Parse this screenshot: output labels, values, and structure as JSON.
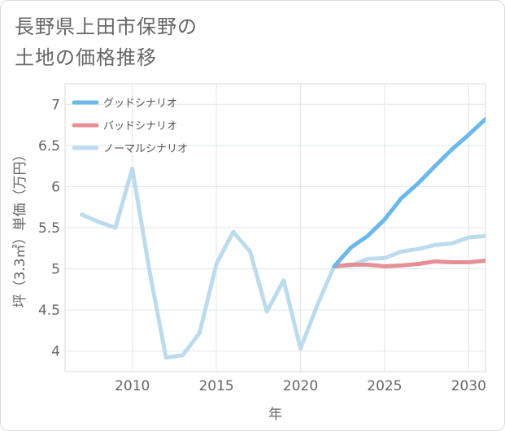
{
  "chart_data": {
    "type": "line",
    "title_lines": [
      "長野県上田市保野の",
      "土地の価格推移"
    ],
    "xlabel": "年",
    "ylabel": "坪（3.3㎡）単価（万円）",
    "xlim": [
      2006,
      2031
    ],
    "ylim": [
      3.75,
      7.25
    ],
    "x_ticks": [
      2010,
      2015,
      2020,
      2025,
      2030
    ],
    "y_ticks": [
      4,
      4.5,
      5,
      5.5,
      6,
      6.5,
      7
    ],
    "grid": true,
    "legend_position": "top-left",
    "series": [
      {
        "name": "グッドシナリオ",
        "color": "#6cb8eb",
        "points": [
          [
            2022,
            5.03
          ],
          [
            2023,
            5.26
          ],
          [
            2024,
            5.4
          ],
          [
            2025,
            5.6
          ],
          [
            2026,
            5.86
          ],
          [
            2027,
            6.04
          ],
          [
            2028,
            6.25
          ],
          [
            2029,
            6.45
          ],
          [
            2030,
            6.63
          ],
          [
            2031,
            6.82
          ]
        ]
      },
      {
        "name": "バッドシナリオ",
        "color": "#e68f96",
        "points": [
          [
            2022,
            5.03
          ],
          [
            2023,
            5.05
          ],
          [
            2024,
            5.05
          ],
          [
            2025,
            5.03
          ],
          [
            2026,
            5.04
          ],
          [
            2027,
            5.06
          ],
          [
            2028,
            5.09
          ],
          [
            2029,
            5.08
          ],
          [
            2030,
            5.08
          ],
          [
            2031,
            5.1
          ]
        ]
      },
      {
        "name": "ノーマルシナリオ",
        "color": "#bcdcee",
        "points": [
          [
            2007,
            5.66
          ],
          [
            2008,
            5.57
          ],
          [
            2009,
            5.5
          ],
          [
            2010,
            6.22
          ],
          [
            2011,
            5.0
          ],
          [
            2012,
            3.92
          ],
          [
            2013,
            3.95
          ],
          [
            2014,
            4.22
          ],
          [
            2015,
            5.06
          ],
          [
            2016,
            5.45
          ],
          [
            2017,
            5.21
          ],
          [
            2018,
            4.48
          ],
          [
            2019,
            4.86
          ],
          [
            2020,
            4.03
          ],
          [
            2021,
            4.56
          ],
          [
            2022,
            5.03
          ],
          [
            2023,
            5.04
          ],
          [
            2024,
            5.12
          ],
          [
            2025,
            5.13
          ],
          [
            2026,
            5.21
          ],
          [
            2027,
            5.24
          ],
          [
            2028,
            5.29
          ],
          [
            2029,
            5.31
          ],
          [
            2030,
            5.38
          ],
          [
            2031,
            5.4
          ]
        ]
      }
    ]
  }
}
